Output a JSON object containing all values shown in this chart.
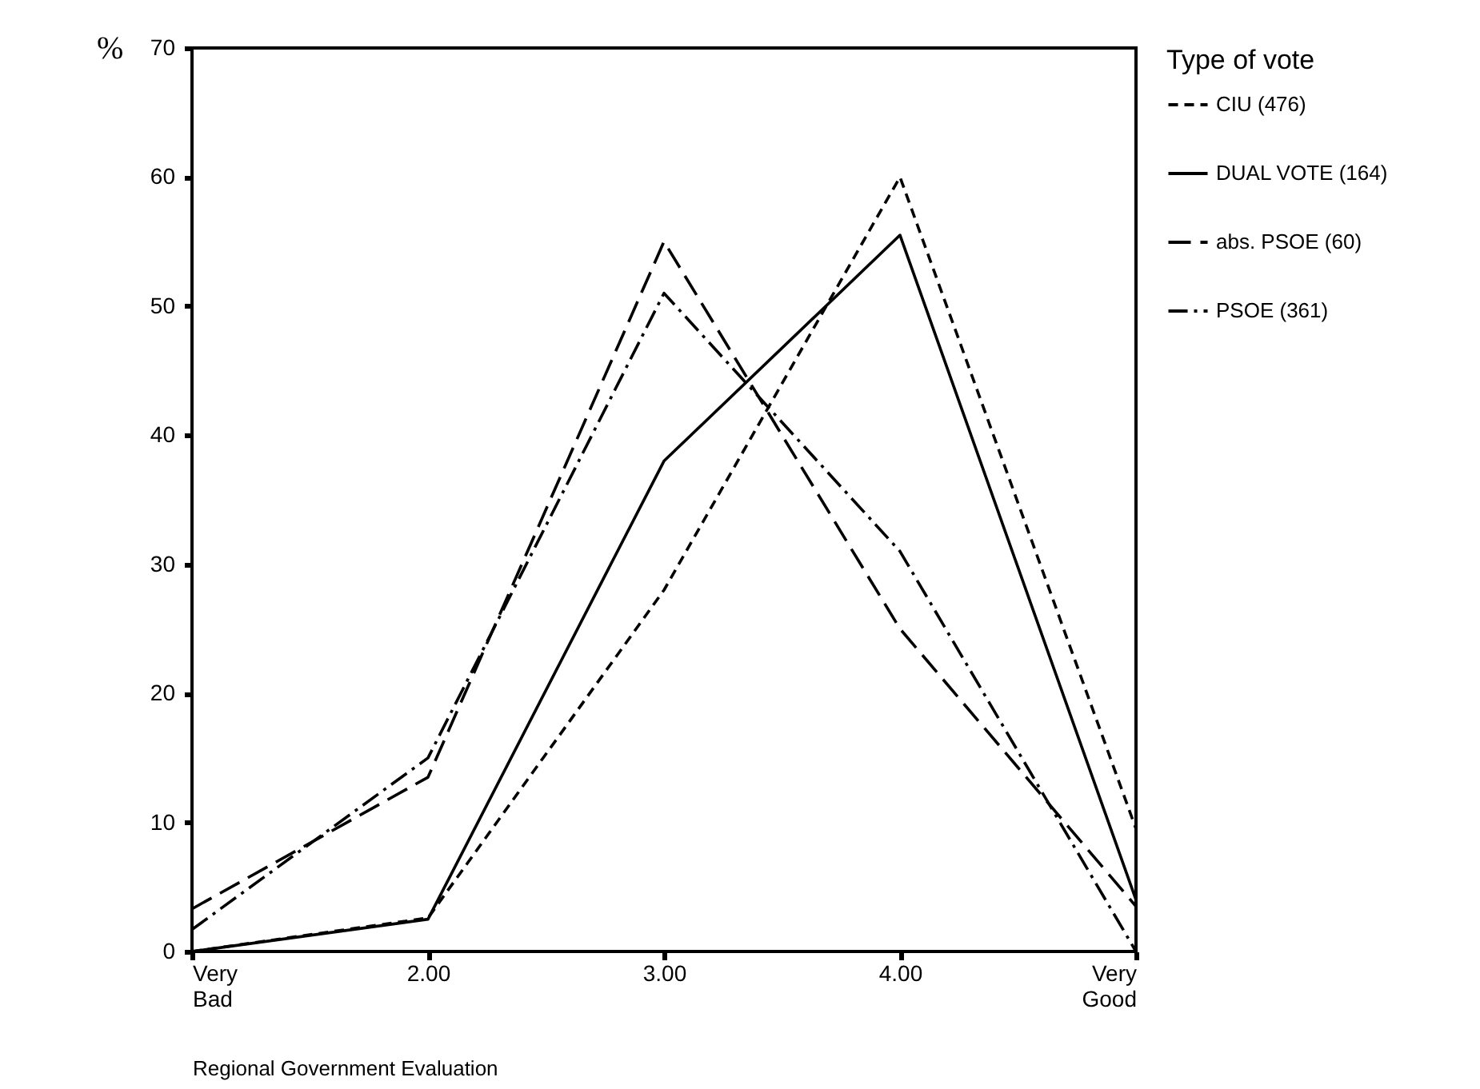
{
  "chart_data": {
    "type": "line",
    "xlabel": "Regional Government Evaluation",
    "ylabel": "%",
    "legend_title": "Type of vote",
    "categories": [
      "Very Bad",
      "2.00",
      "3.00",
      "4.00",
      "Very Good"
    ],
    "series": [
      {
        "name": "CIU (476)",
        "color": "#000000",
        "line_style": "dashed",
        "values": [
          0,
          2.6,
          28,
          60,
          9.5
        ]
      },
      {
        "name": "DUAL VOTE (164)",
        "color": "#000000",
        "line_style": "solid",
        "values": [
          0,
          2.5,
          38,
          55.5,
          4
        ]
      },
      {
        "name": "abs.  PSOE (60)",
        "color": "#000000",
        "line_style": "longdash",
        "values": [
          3.3,
          13.5,
          55,
          25,
          3.5
        ]
      },
      {
        "name": "PSOE (361)",
        "color": "#000000",
        "line_style": "dashdot",
        "values": [
          1.7,
          15,
          51,
          31,
          0
        ]
      }
    ],
    "ylim": [
      0,
      70
    ],
    "yticks": [
      0,
      10,
      20,
      30,
      40,
      50,
      60,
      70
    ],
    "grid": false,
    "legend": "right",
    "marker": "none"
  }
}
